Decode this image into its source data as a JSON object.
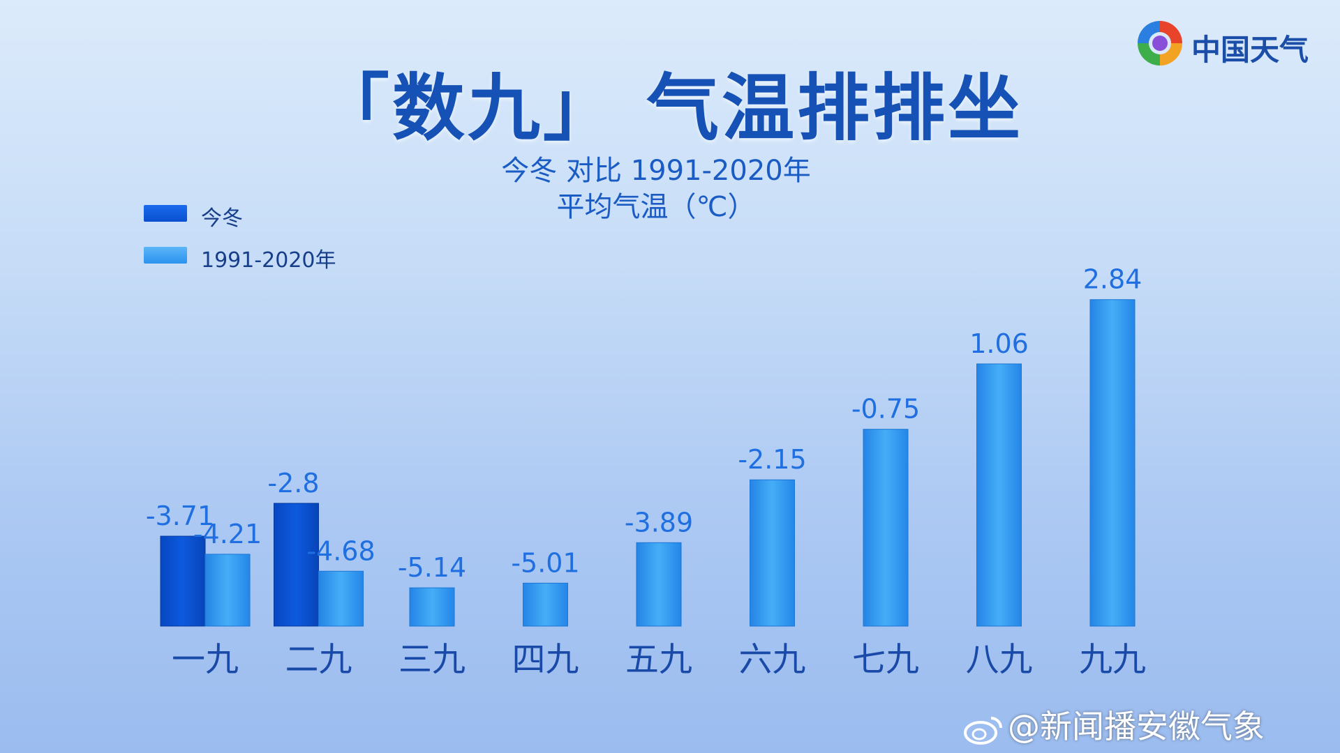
{
  "title": "「数九」  气温排排坐",
  "subtitle_line1": "今冬  对比  1991-2020年",
  "subtitle_line2": "平均气温（℃）",
  "logo": {
    "text": "中国天气",
    "icon": "colorful-swirl-logo-icon"
  },
  "watermark": {
    "text": "@新闻播安徽气象",
    "icon": "weibo-icon"
  },
  "colors": {
    "current": "#0a56d8",
    "normal": "#2f9bf3",
    "label": "#1f6fe0",
    "axis_label": "#1a4aa8",
    "title": "#1651b5"
  },
  "chart_data": {
    "type": "bar",
    "title": "「数九」  气温排排坐",
    "subtitle": "今冬  对比  1991-2020年  平均气温（℃）",
    "categories": [
      "一九",
      "二九",
      "三九",
      "四九",
      "五九",
      "六九",
      "七九",
      "八九",
      "九九"
    ],
    "series": [
      {
        "name": "今冬",
        "values": [
          -3.71,
          -2.8,
          null,
          null,
          null,
          null,
          null,
          null,
          null
        ]
      },
      {
        "name": "1991-2020年",
        "values": [
          -4.21,
          -4.68,
          -5.14,
          -5.01,
          -3.89,
          -2.15,
          -0.75,
          1.06,
          2.84
        ]
      }
    ],
    "value_labels": {
      "今冬": [
        "-3.71",
        "-2.8",
        "",
        "",
        "",
        "",
        "",
        "",
        ""
      ],
      "1991-2020年": [
        "-4.21",
        "-4.68",
        "-5.14",
        "-5.01",
        "-3.89",
        "-2.15",
        "-0.75",
        "1.06",
        "2.84"
      ]
    },
    "ylim": [
      -6.2,
      3.5
    ],
    "grid": false,
    "legend": "top-left",
    "xlabel": "",
    "ylabel": ""
  }
}
